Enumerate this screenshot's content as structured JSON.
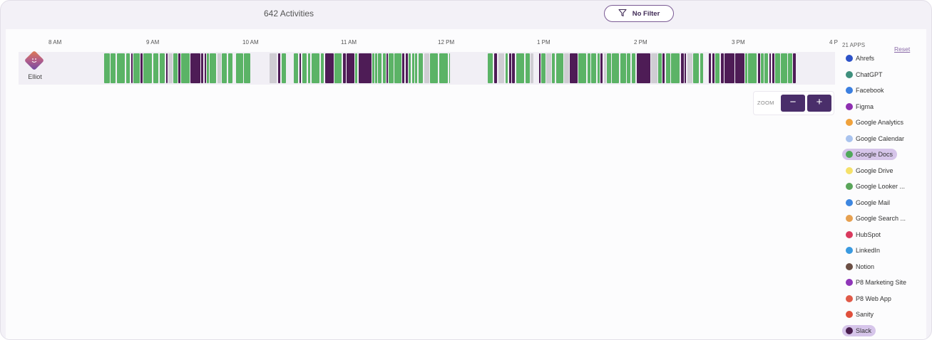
{
  "header": {
    "activities_count": "642 Activities",
    "filter_label": "No Filter"
  },
  "timeline": {
    "hours": [
      "8 AM",
      "9 AM",
      "10 AM",
      "11 AM",
      "12 PM",
      "1 PM",
      "2 PM",
      "3 PM",
      "4 P"
    ],
    "user": {
      "name": "Elliot"
    }
  },
  "zoom": {
    "label": "ZOOM",
    "minus": "−",
    "plus": "+"
  },
  "apps_panel": {
    "title": "21 APPS",
    "reset_label": "Reset",
    "apps": [
      {
        "name": "Ahrefs",
        "color": "#2d52c8",
        "selected": false
      },
      {
        "name": "ChatGPT",
        "color": "#3f8f7d",
        "selected": false
      },
      {
        "name": "Facebook",
        "color": "#3b7fe0",
        "selected": false
      },
      {
        "name": "Figma",
        "color": "#8e2fb0",
        "selected": false
      },
      {
        "name": "Google Analytics",
        "color": "#f0a23c",
        "selected": false
      },
      {
        "name": "Google Calendar",
        "color": "#a9c3ee",
        "selected": false
      },
      {
        "name": "Google Docs",
        "color": "#4fa85a",
        "selected": true
      },
      {
        "name": "Google Drive",
        "color": "#f5e16a",
        "selected": false
      },
      {
        "name": "Google Looker ...",
        "color": "#5aa55a",
        "selected": false
      },
      {
        "name": "Google Mail",
        "color": "#3d86e0",
        "selected": false
      },
      {
        "name": "Google Search ...",
        "color": "#e6a050",
        "selected": false
      },
      {
        "name": "HubSpot",
        "color": "#d93a5e",
        "selected": false
      },
      {
        "name": "LinkedIn",
        "color": "#3a9ae0",
        "selected": false
      },
      {
        "name": "Notion",
        "color": "#6b4f44",
        "selected": false
      },
      {
        "name": "P8 Marketing Site",
        "color": "#8f36b8",
        "selected": false
      },
      {
        "name": "P8 Web App",
        "color": "#e05a48",
        "selected": false
      },
      {
        "name": "Sanity",
        "color": "#e0503c",
        "selected": false
      },
      {
        "name": "Slack",
        "color": "#4a1e4e",
        "selected": true
      }
    ]
  },
  "colors": {
    "docs_green": "#5bb366",
    "slack_purple": "#4e1c56",
    "idle_gray": "#cfcdd3",
    "accent": "#4a2e6a"
  }
}
